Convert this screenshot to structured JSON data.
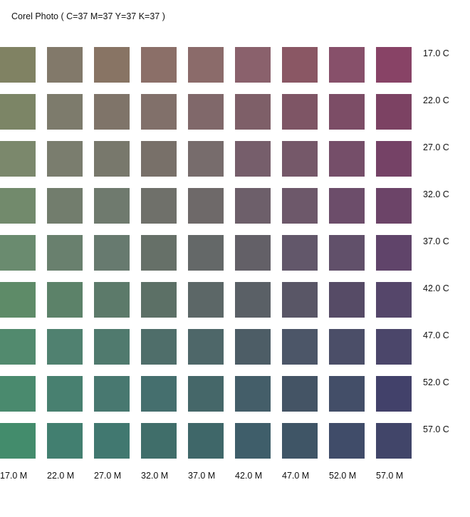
{
  "title": "Corel Photo ( C=37 M=37 Y=37 K=37 )",
  "chart_data": {
    "type": "heatmap",
    "title": "Corel Photo ( C=37 M=37 Y=37 K=37 )",
    "row_labels": [
      "17.0 C",
      "22.0 C",
      "27.0 C",
      "32.0 C",
      "37.0 C",
      "42.0 C",
      "47.0 C",
      "52.0 C",
      "57.0 C"
    ],
    "col_labels": [
      "17.0 M",
      "22.0 M",
      "27.0 M",
      "32.0 M",
      "37.0 M",
      "42.0 M",
      "47.0 M",
      "52.0 M",
      "57.0 M"
    ],
    "colors": [
      [
        "#808263",
        "#82796A",
        "#887464",
        "#8B6F68",
        "#8B6B6A",
        "#8A616C",
        "#8A5764",
        "#87506A",
        "#884366"
      ],
      [
        "#7C8566",
        "#7D7B6C",
        "#7F7469",
        "#81706A",
        "#80686A",
        "#7E5F68",
        "#7E5565",
        "#7C4D66",
        "#7C4263"
      ],
      [
        "#7B886C",
        "#7A7D6E",
        "#78786C",
        "#787069",
        "#776C6C",
        "#765E6B",
        "#755869",
        "#754E69",
        "#754266"
      ],
      [
        "#728A6C",
        "#727D6D",
        "#6F7A6E",
        "#6F706A",
        "#6E6969",
        "#6D5F6A",
        "#6D586A",
        "#6C4D6A",
        "#6C4468"
      ],
      [
        "#6A8B6F",
        "#69806E",
        "#677A6F",
        "#667068",
        "#646868",
        "#636067",
        "#62576A",
        "#61506A",
        "#60446A"
      ],
      [
        "#5E8B68",
        "#5C8269",
        "#5C7A6A",
        "#5C7066",
        "#5C6767",
        "#5A6066",
        "#595666",
        "#564B66",
        "#55466A"
      ],
      [
        "#528A6E",
        "#508170",
        "#507A6E",
        "#4F6E6A",
        "#4E6769",
        "#4D5D66",
        "#4C5668",
        "#4B4E68",
        "#4B466A"
      ],
      [
        "#4A8A6E",
        "#488070",
        "#487870",
        "#456F6E",
        "#456769",
        "#445E69",
        "#445465",
        "#434E68",
        "#42416A"
      ],
      [
        "#438C6C",
        "#427F70",
        "#417870",
        "#406E6A",
        "#3F6769",
        "#3F5E6A",
        "#3F5566",
        "#404C69",
        "#414569"
      ]
    ]
  }
}
